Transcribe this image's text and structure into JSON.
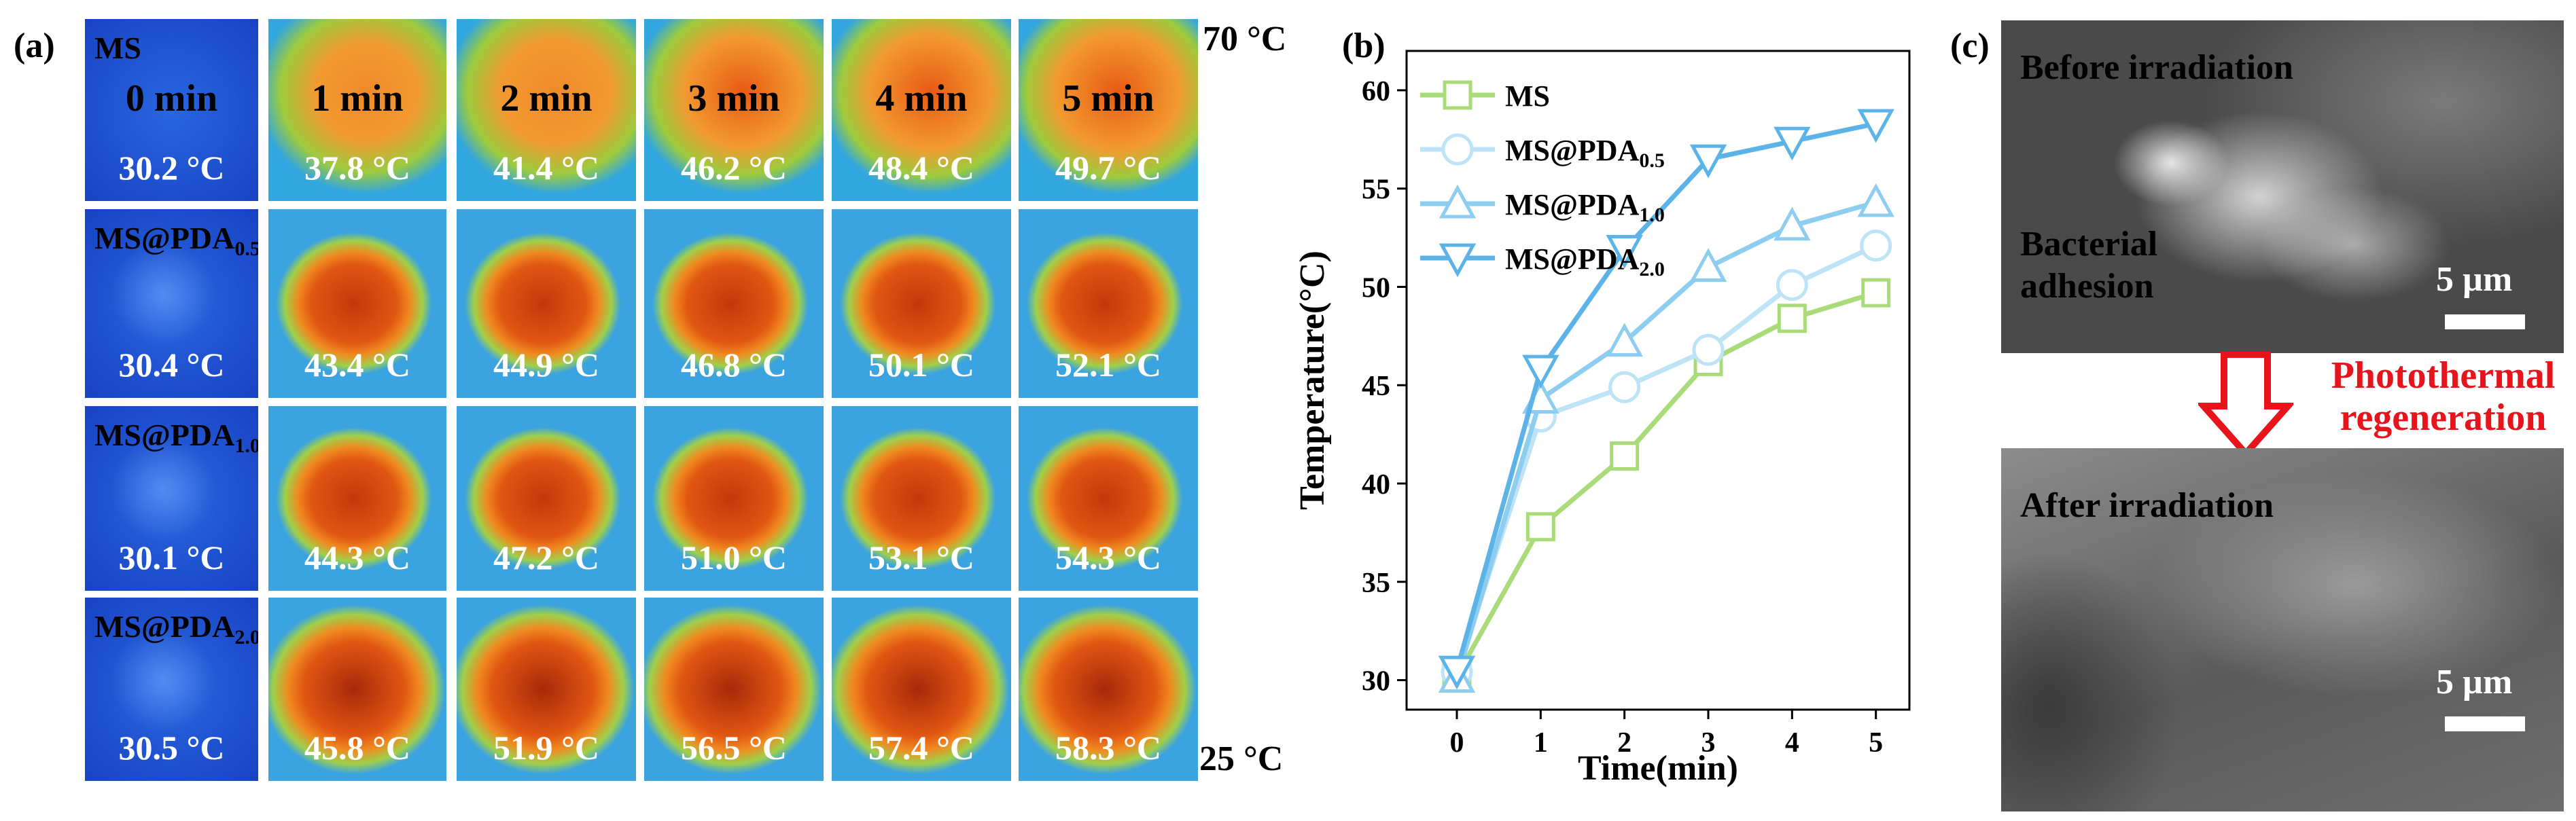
{
  "panel_labels": {
    "a": "(a)",
    "b": "(b)",
    "c": "(c)"
  },
  "thermal_scale": {
    "max": "70 °C",
    "min": "25 °C"
  },
  "time_labels": [
    "0 min",
    "1 min",
    "2 min",
    "3 min",
    "4 min",
    "5 min"
  ],
  "rows": [
    {
      "sample_base": "MS",
      "sample_sub": "",
      "temps": [
        "30.2 °C",
        "37.8 °C",
        "41.4 °C",
        "46.2 °C",
        "48.4 °C",
        "49.7 °C"
      ]
    },
    {
      "sample_base": "MS@PDA",
      "sample_sub": "0.5",
      "temps": [
        "30.4 °C",
        "43.4 °C",
        "44.9 °C",
        "46.8 °C",
        "50.1 °C",
        "52.1 °C"
      ]
    },
    {
      "sample_base": "MS@PDA",
      "sample_sub": "1.0",
      "temps": [
        "30.1 °C",
        "44.3 °C",
        "47.2 °C",
        "51.0 °C",
        "53.1 °C",
        "54.3 °C"
      ]
    },
    {
      "sample_base": "MS@PDA",
      "sample_sub": "2.0",
      "temps": [
        "30.5 °C",
        "45.8 °C",
        "51.9 °C",
        "56.5 °C",
        "57.4 °C",
        "58.3 °C"
      ]
    }
  ],
  "chart_data": {
    "type": "line",
    "xlabel": "Time(min)",
    "ylabel": "Temperature(°C)",
    "x": [
      0,
      1,
      2,
      3,
      4,
      5
    ],
    "xlim": [
      -0.6,
      5.4
    ],
    "ylim": [
      28.5,
      62
    ],
    "yticks": [
      30,
      35,
      40,
      45,
      50,
      55,
      60
    ],
    "legend_position": "top-left",
    "series": [
      {
        "name": "MS",
        "name_base": "MS",
        "name_sub": "",
        "marker": "square",
        "color": "#a9dc78",
        "values": [
          30.2,
          37.8,
          41.4,
          46.2,
          48.4,
          49.7
        ]
      },
      {
        "name": "MS@PDA0.5",
        "name_base": "MS@PDA",
        "name_sub": "0.5",
        "marker": "circle",
        "color": "#bde3f6",
        "values": [
          30.4,
          43.4,
          44.9,
          46.8,
          50.1,
          52.1
        ]
      },
      {
        "name": "MS@PDA1.0",
        "name_base": "MS@PDA",
        "name_sub": "1.0",
        "marker": "triangle-up",
        "color": "#8dcdf0",
        "values": [
          30.1,
          44.3,
          47.2,
          51.0,
          53.1,
          54.3
        ]
      },
      {
        "name": "MS@PDA2.0",
        "name_base": "MS@PDA",
        "name_sub": "2.0",
        "marker": "triangle-down",
        "color": "#5bb3e8",
        "values": [
          30.5,
          45.8,
          51.9,
          56.5,
          57.4,
          58.3
        ]
      }
    ]
  },
  "sem": {
    "before_label": "Before irradiation",
    "adhesion_line1": "Bacterial",
    "adhesion_line2": "adhesion",
    "after_label": "After irradiation",
    "scale_text": "5 µm",
    "regen_line1": "Photothermal",
    "regen_line2": "regeneration",
    "arrow_color": "#e8141b"
  }
}
